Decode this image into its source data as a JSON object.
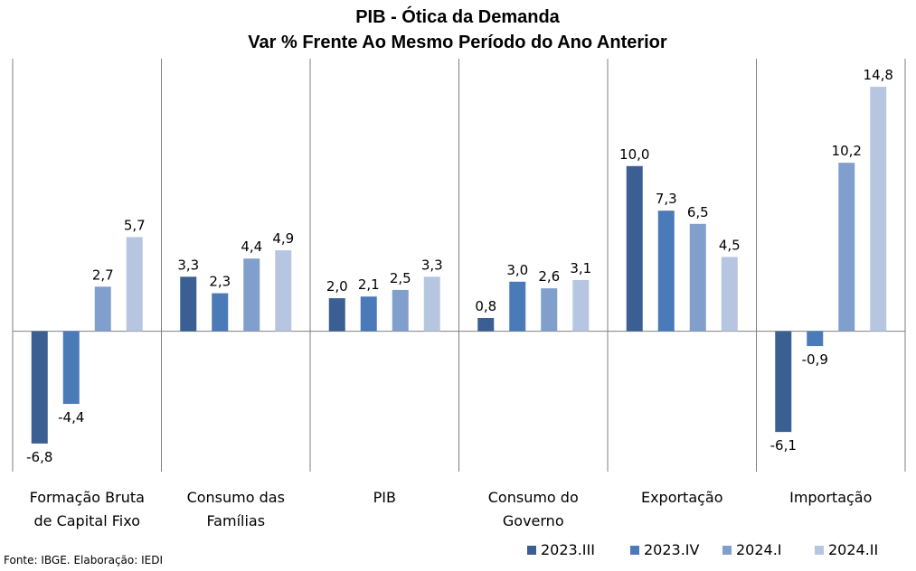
{
  "source_note": "Fonte: IBGE. Elaboração: IEDI",
  "chart_data": {
    "type": "bar",
    "title": "PIB - Ótica da Demanda",
    "subtitle": "Var % Frente Ao Mesmo Período do Ano Anterior",
    "categories": [
      [
        "Formação Bruta",
        "de Capital Fixo"
      ],
      [
        "Consumo das",
        "Famílias"
      ],
      [
        "PIB"
      ],
      [
        "Consumo do",
        "Governo"
      ],
      [
        "Exportação"
      ],
      [
        "Importação"
      ]
    ],
    "series": [
      {
        "name": "2023.III",
        "color": "#3b5f92",
        "values": [
          -6.8,
          3.3,
          2.0,
          0.8,
          10.0,
          -6.1
        ]
      },
      {
        "name": "2023.IV",
        "color": "#4a7ab8",
        "values": [
          -4.4,
          2.3,
          2.1,
          3.0,
          7.3,
          -0.9
        ]
      },
      {
        "name": "2024.I",
        "color": "#819fcc",
        "values": [
          2.7,
          4.4,
          2.5,
          2.6,
          6.5,
          10.2
        ]
      },
      {
        "name": "2024.II",
        "color": "#b7c6e0",
        "values": [
          5.7,
          4.9,
          3.3,
          3.1,
          4.5,
          14.8
        ]
      }
    ],
    "ylim": [
      -8.5,
      16.5
    ],
    "grid": false,
    "legend_position": "bottom-right",
    "decimal_separator": ","
  }
}
